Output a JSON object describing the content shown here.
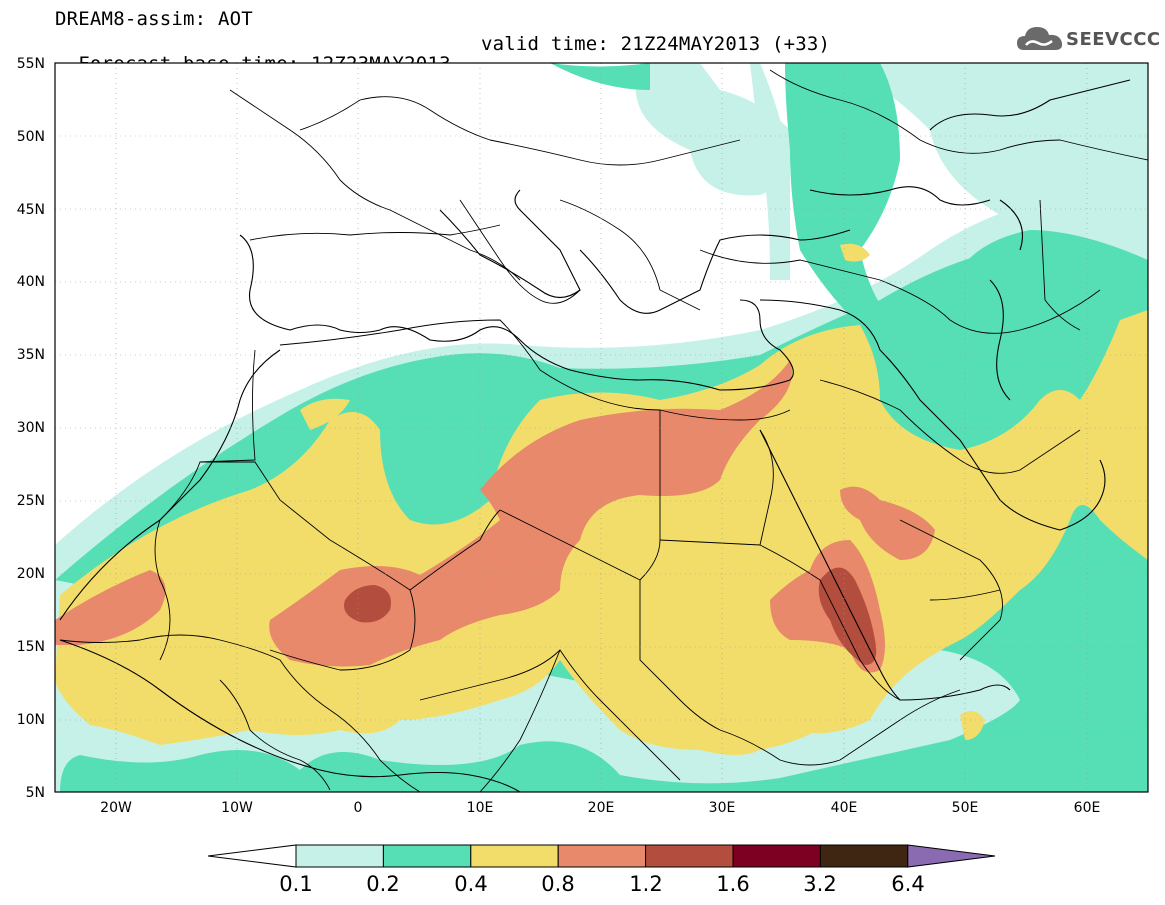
{
  "header": {
    "line1": "DREAM8-assim: AOT",
    "line2": "Forecast base time: 12Z23MAY2013",
    "valid": "valid time: 21Z24MAY2013 (+33)"
  },
  "logo": {
    "text": "SEEVCCC",
    "icon": "cloud-icon"
  },
  "map": {
    "lat_labels": [
      "55N",
      "50N",
      "45N",
      "40N",
      "35N",
      "30N",
      "25N",
      "20N",
      "15N",
      "10N",
      "5N"
    ],
    "lon_labels": [
      "20W",
      "10W",
      "0",
      "10E",
      "20E",
      "30E",
      "40E",
      "50E",
      "60E"
    ],
    "colors": {
      "c01": "#c6f1e9",
      "c02": "#56dfb5",
      "c04": "#f3dd6a",
      "c08": "#e7896a",
      "c12": "#b34e3e",
      "c16": "#7d0023",
      "c32": "#3f2612",
      "c64": "#8a6ab0"
    }
  },
  "colorbar": {
    "labels": [
      "0.1",
      "0.2",
      "0.4",
      "0.8",
      "1.2",
      "1.6",
      "3.2",
      "6.4"
    ]
  }
}
